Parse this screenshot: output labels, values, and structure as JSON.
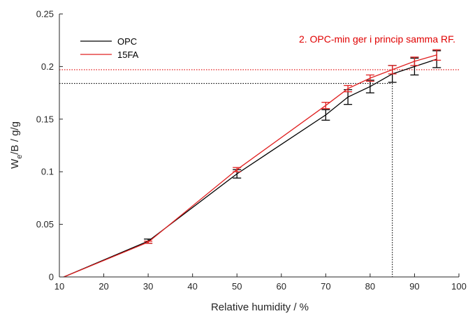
{
  "chart_data": {
    "type": "line",
    "xlabel": "Relative humidity / %",
    "ylabel_main": "W",
    "ylabel_sub": "e",
    "ylabel_rest": "/B / g/g",
    "xlim": [
      10,
      100
    ],
    "ylim": [
      0,
      0.25
    ],
    "xticks": [
      "10",
      "20",
      "30",
      "40",
      "50",
      "60",
      "70",
      "80",
      "90",
      "100"
    ],
    "yticks": [
      "0",
      "0.05",
      "0.1",
      "0.15",
      "0.2",
      "0.25"
    ],
    "grid": false,
    "legend_position": "top-left",
    "annotation": "2. OPC-min ger i princip samma RF.",
    "annotation_color": "#e00000",
    "series": [
      {
        "name": "OPC",
        "color": "#000000",
        "x": [
          11,
          30,
          50,
          70,
          75,
          80,
          85,
          90,
          95
        ],
        "y": [
          0,
          0.034,
          0.098,
          0.154,
          0.171,
          0.181,
          0.193,
          0.2,
          0.207
        ],
        "err": [
          0,
          0.002,
          0.004,
          0.005,
          0.007,
          0.006,
          0.008,
          0.008,
          0.008
        ]
      },
      {
        "name": "15FA",
        "color": "#e02020",
        "x": [
          11,
          30,
          50,
          70,
          75,
          80,
          85,
          90,
          95
        ],
        "y": [
          0,
          0.033,
          0.102,
          0.163,
          0.179,
          0.189,
          0.197,
          0.205,
          0.211
        ],
        "err": [
          0,
          0.001,
          0.002,
          0.003,
          0.003,
          0.003,
          0.004,
          0.004,
          0.005
        ]
      }
    ],
    "reference_lines": [
      {
        "color": "#000000",
        "x": 85,
        "y": 0.184
      },
      {
        "color": "#e00000",
        "y": 0.197
      }
    ]
  }
}
